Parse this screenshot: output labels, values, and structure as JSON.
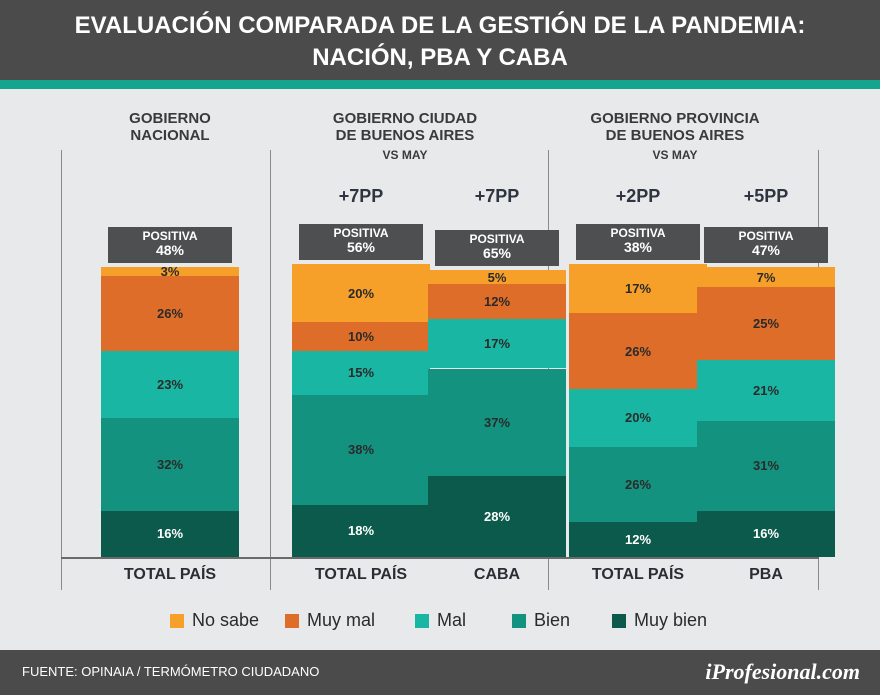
{
  "title": {
    "line1": "EVALUACIÓN COMPARADA DE LA GESTIÓN DE LA PANDEMIA:",
    "line2": "NACIÓN, PBA Y CABA"
  },
  "groups": [
    {
      "line1": "GOBIERNO",
      "line2": "NACIONAL",
      "vs": ""
    },
    {
      "line1": "GOBIERNO CIUDAD",
      "line2": "DE BUENOS AIRES",
      "vs": "VS MAY"
    },
    {
      "line1": "GOBIERNO PROVINCIA",
      "line2": "DE BUENOS AIRES",
      "vs": "VS MAY"
    }
  ],
  "legend": [
    "No sabe",
    "Muy mal",
    "Mal",
    "Bien",
    "Muy bien"
  ],
  "colors": {
    "No sabe": "#f6a02a",
    "Muy mal": "#de6d29",
    "Mal": "#19b7a3",
    "Bien": "#13937f",
    "Muy bien": "#0c5a4b",
    "positive_box": "#4e4f51",
    "header": "#4b4b4c",
    "accent": "#15a58f"
  },
  "chart_data": {
    "type": "bar",
    "stacked": true,
    "categories": [
      "TOTAL PAÍS",
      "TOTAL PAÍS",
      "CABA",
      "TOTAL PAÍS",
      "PBA"
    ],
    "series": [
      {
        "name": "No sabe",
        "values": [
          3,
          20,
          5,
          17,
          7
        ]
      },
      {
        "name": "Muy mal",
        "values": [
          26,
          10,
          12,
          26,
          25
        ]
      },
      {
        "name": "Mal",
        "values": [
          23,
          15,
          17,
          20,
          21
        ]
      },
      {
        "name": "Bien",
        "values": [
          32,
          38,
          37,
          26,
          31
        ]
      },
      {
        "name": "Muy bien",
        "values": [
          16,
          18,
          28,
          12,
          16
        ]
      }
    ],
    "positiva_label": "POSITIVA",
    "positiva": [
      "48%",
      "56%",
      "65%",
      "38%",
      "47%"
    ],
    "vs_may": [
      "",
      "+7PP",
      "+7PP",
      "+2PP",
      "+5PP"
    ],
    "ylim": [
      0,
      100
    ]
  },
  "footer": {
    "source": "FUENTE:  OPINAIA / TERMÓMETRO CIUDADANO",
    "brand": "iProfesional.com"
  }
}
